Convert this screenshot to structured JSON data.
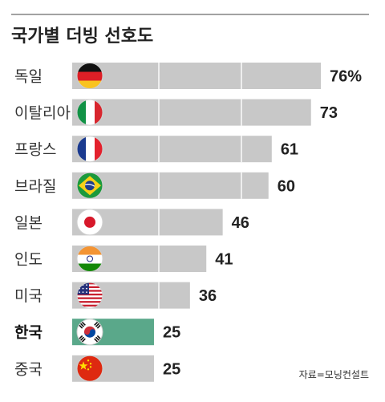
{
  "chart_data": {
    "type": "bar",
    "title": "국가별 더빙 선호도",
    "categories": [
      "독일",
      "이탈리아",
      "프랑스",
      "브라질",
      "일본",
      "인도",
      "미국",
      "한국",
      "중국"
    ],
    "values": [
      76,
      73,
      61,
      60,
      46,
      41,
      36,
      25,
      25
    ],
    "value_labels": [
      "76%",
      "73",
      "61",
      "60",
      "46",
      "41",
      "36",
      "25",
      "25"
    ],
    "highlight_category": "한국",
    "xlabel": "",
    "ylabel": "",
    "grid": true,
    "source": "자료=모닝컨설트"
  },
  "flags": [
    "germany-flag-icon",
    "italy-flag-icon",
    "france-flag-icon",
    "brazil-flag-icon",
    "japan-flag-icon",
    "india-flag-icon",
    "usa-flag-icon",
    "korea-flag-icon",
    "china-flag-icon"
  ],
  "colors": {
    "bar": "#c8c8c8",
    "highlight_bar": "#5aa88a",
    "grid": "#ffffff"
  }
}
